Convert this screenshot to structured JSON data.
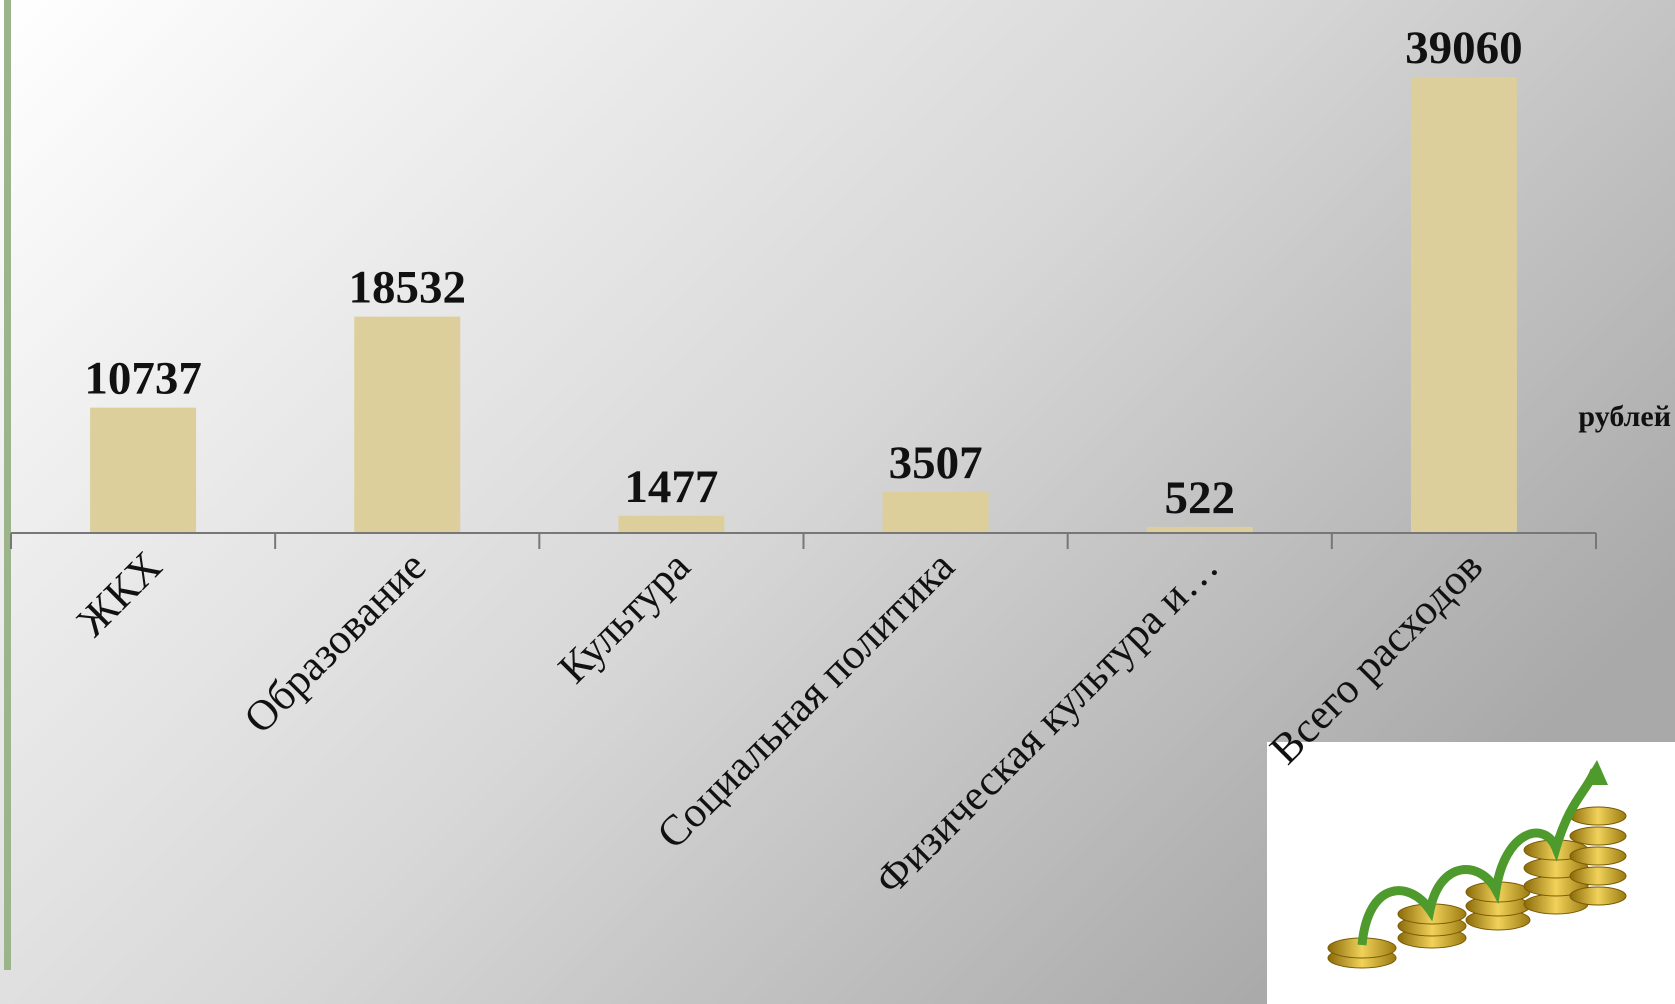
{
  "chart_data": {
    "type": "bar",
    "categories": [
      "ЖКХ",
      "Образование",
      "Культура",
      "Социальная политика",
      "Физическая культура и…",
      "Всего расходов"
    ],
    "values": [
      10737,
      18532,
      1477,
      3507,
      522,
      39060
    ],
    "color": "#dccf9c",
    "unit_label": "рублей"
  }
}
